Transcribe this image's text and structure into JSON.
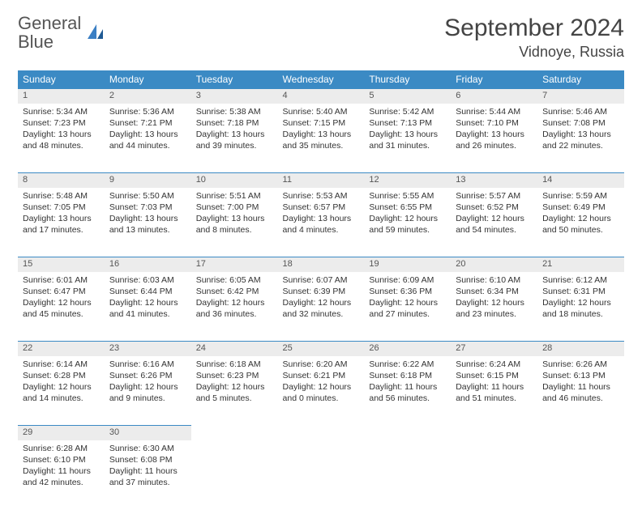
{
  "logo": {
    "text_gray": "General",
    "text_blue": "Blue"
  },
  "title": "September 2024",
  "location": "Vidnoye, Russia",
  "colors": {
    "header_bg": "#3b8ac4",
    "header_text": "#ffffff",
    "daynum_bg": "#ececec",
    "row_border": "#3b8ac4",
    "body_text": "#333333",
    "logo_gray": "#555555",
    "logo_blue": "#3b7fc4"
  },
  "weekdays": [
    "Sunday",
    "Monday",
    "Tuesday",
    "Wednesday",
    "Thursday",
    "Friday",
    "Saturday"
  ],
  "weeks": [
    [
      {
        "n": "1",
        "sunrise": "5:34 AM",
        "sunset": "7:23 PM",
        "daylight": "13 hours and 48 minutes."
      },
      {
        "n": "2",
        "sunrise": "5:36 AM",
        "sunset": "7:21 PM",
        "daylight": "13 hours and 44 minutes."
      },
      {
        "n": "3",
        "sunrise": "5:38 AM",
        "sunset": "7:18 PM",
        "daylight": "13 hours and 39 minutes."
      },
      {
        "n": "4",
        "sunrise": "5:40 AM",
        "sunset": "7:15 PM",
        "daylight": "13 hours and 35 minutes."
      },
      {
        "n": "5",
        "sunrise": "5:42 AM",
        "sunset": "7:13 PM",
        "daylight": "13 hours and 31 minutes."
      },
      {
        "n": "6",
        "sunrise": "5:44 AM",
        "sunset": "7:10 PM",
        "daylight": "13 hours and 26 minutes."
      },
      {
        "n": "7",
        "sunrise": "5:46 AM",
        "sunset": "7:08 PM",
        "daylight": "13 hours and 22 minutes."
      }
    ],
    [
      {
        "n": "8",
        "sunrise": "5:48 AM",
        "sunset": "7:05 PM",
        "daylight": "13 hours and 17 minutes."
      },
      {
        "n": "9",
        "sunrise": "5:50 AM",
        "sunset": "7:03 PM",
        "daylight": "13 hours and 13 minutes."
      },
      {
        "n": "10",
        "sunrise": "5:51 AM",
        "sunset": "7:00 PM",
        "daylight": "13 hours and 8 minutes."
      },
      {
        "n": "11",
        "sunrise": "5:53 AM",
        "sunset": "6:57 PM",
        "daylight": "13 hours and 4 minutes."
      },
      {
        "n": "12",
        "sunrise": "5:55 AM",
        "sunset": "6:55 PM",
        "daylight": "12 hours and 59 minutes."
      },
      {
        "n": "13",
        "sunrise": "5:57 AM",
        "sunset": "6:52 PM",
        "daylight": "12 hours and 54 minutes."
      },
      {
        "n": "14",
        "sunrise": "5:59 AM",
        "sunset": "6:49 PM",
        "daylight": "12 hours and 50 minutes."
      }
    ],
    [
      {
        "n": "15",
        "sunrise": "6:01 AM",
        "sunset": "6:47 PM",
        "daylight": "12 hours and 45 minutes."
      },
      {
        "n": "16",
        "sunrise": "6:03 AM",
        "sunset": "6:44 PM",
        "daylight": "12 hours and 41 minutes."
      },
      {
        "n": "17",
        "sunrise": "6:05 AM",
        "sunset": "6:42 PM",
        "daylight": "12 hours and 36 minutes."
      },
      {
        "n": "18",
        "sunrise": "6:07 AM",
        "sunset": "6:39 PM",
        "daylight": "12 hours and 32 minutes."
      },
      {
        "n": "19",
        "sunrise": "6:09 AM",
        "sunset": "6:36 PM",
        "daylight": "12 hours and 27 minutes."
      },
      {
        "n": "20",
        "sunrise": "6:10 AM",
        "sunset": "6:34 PM",
        "daylight": "12 hours and 23 minutes."
      },
      {
        "n": "21",
        "sunrise": "6:12 AM",
        "sunset": "6:31 PM",
        "daylight": "12 hours and 18 minutes."
      }
    ],
    [
      {
        "n": "22",
        "sunrise": "6:14 AM",
        "sunset": "6:28 PM",
        "daylight": "12 hours and 14 minutes."
      },
      {
        "n": "23",
        "sunrise": "6:16 AM",
        "sunset": "6:26 PM",
        "daylight": "12 hours and 9 minutes."
      },
      {
        "n": "24",
        "sunrise": "6:18 AM",
        "sunset": "6:23 PM",
        "daylight": "12 hours and 5 minutes."
      },
      {
        "n": "25",
        "sunrise": "6:20 AM",
        "sunset": "6:21 PM",
        "daylight": "12 hours and 0 minutes."
      },
      {
        "n": "26",
        "sunrise": "6:22 AM",
        "sunset": "6:18 PM",
        "daylight": "11 hours and 56 minutes."
      },
      {
        "n": "27",
        "sunrise": "6:24 AM",
        "sunset": "6:15 PM",
        "daylight": "11 hours and 51 minutes."
      },
      {
        "n": "28",
        "sunrise": "6:26 AM",
        "sunset": "6:13 PM",
        "daylight": "11 hours and 46 minutes."
      }
    ],
    [
      {
        "n": "29",
        "sunrise": "6:28 AM",
        "sunset": "6:10 PM",
        "daylight": "11 hours and 42 minutes."
      },
      {
        "n": "30",
        "sunrise": "6:30 AM",
        "sunset": "6:08 PM",
        "daylight": "11 hours and 37 minutes."
      },
      null,
      null,
      null,
      null,
      null
    ]
  ],
  "labels": {
    "sunrise": "Sunrise:",
    "sunset": "Sunset:",
    "daylight": "Daylight:"
  }
}
